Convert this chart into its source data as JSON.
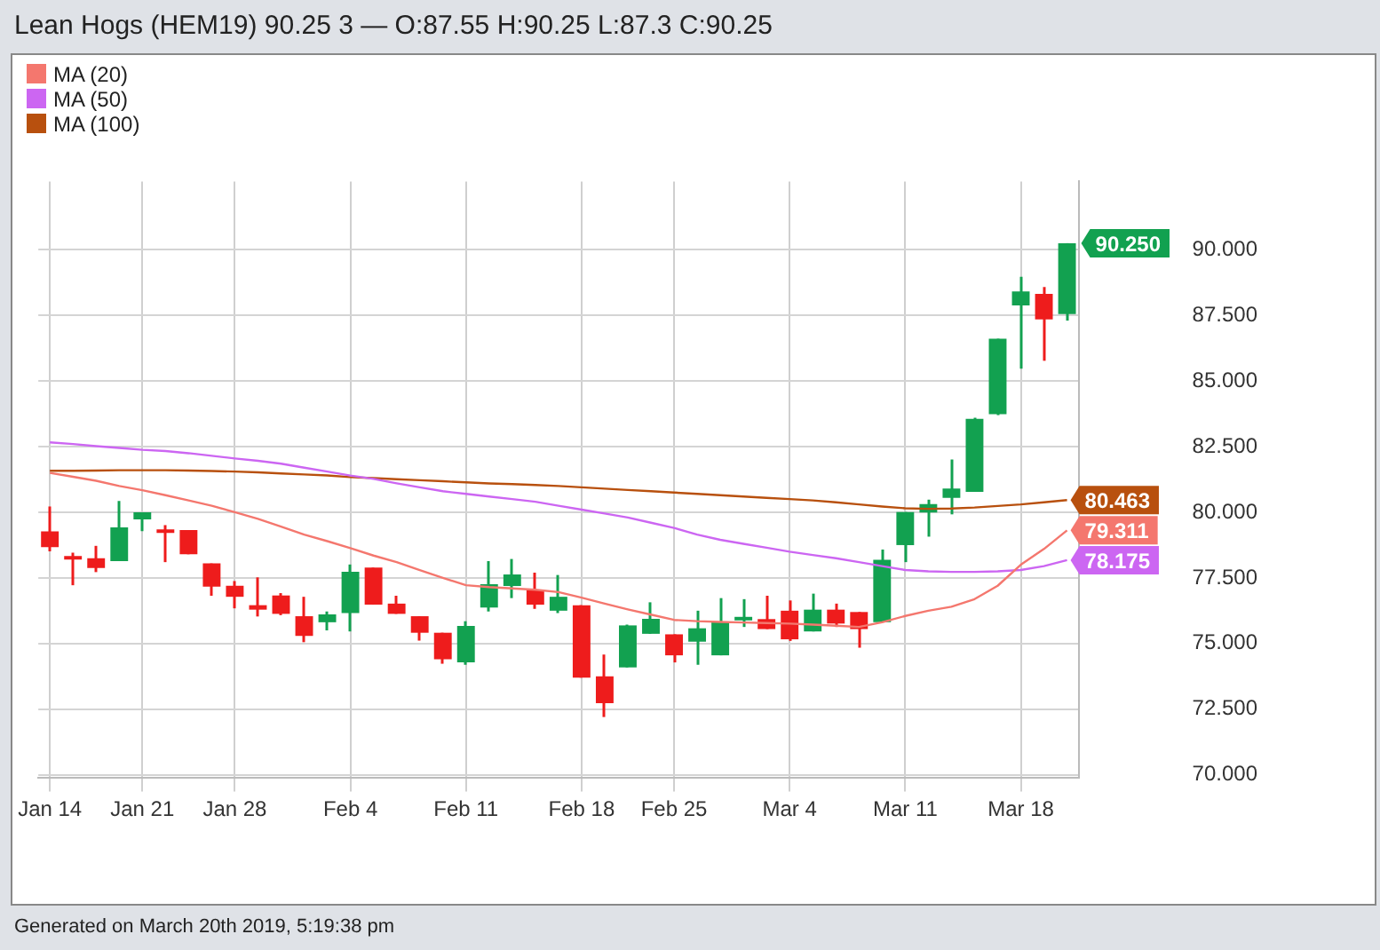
{
  "chart_data": {
    "type": "candlestick",
    "title": "Lean Hogs (HEM19) 90.25 3 — O:87.55 H:90.25 L:87.3 C:90.25",
    "categories": [
      "Jan 14",
      null,
      null,
      null,
      "Jan 21",
      null,
      null,
      null,
      "Jan 28",
      null,
      null,
      null,
      null,
      "Feb 4",
      null,
      null,
      null,
      null,
      "Feb 11",
      null,
      null,
      null,
      null,
      "Feb 18",
      null,
      null,
      null,
      "Feb 25",
      null,
      null,
      null,
      null,
      "Mar 4",
      null,
      null,
      null,
      null,
      "Mar 11",
      null,
      null,
      null,
      null,
      "Mar 18",
      null,
      null
    ],
    "ohlc": [
      [
        79.27,
        80.22,
        78.51,
        78.67
      ],
      [
        78.25,
        78.46,
        77.22,
        78.2
      ],
      [
        78.25,
        78.72,
        77.72,
        77.88
      ],
      [
        78.14,
        80.43,
        78.14,
        79.42
      ],
      [
        79.73,
        80.0,
        79.28,
        80.0
      ],
      [
        79.33,
        79.51,
        78.1,
        79.21
      ],
      [
        79.32,
        79.32,
        78.4,
        78.4
      ],
      [
        78.05,
        78.05,
        76.82,
        77.17
      ],
      [
        77.2,
        77.38,
        76.34,
        76.78
      ],
      [
        76.46,
        77.52,
        76.03,
        76.29
      ],
      [
        76.83,
        76.92,
        76.08,
        76.13
      ],
      [
        76.04,
        76.78,
        75.05,
        75.29
      ],
      [
        75.81,
        76.22,
        75.5,
        76.11
      ],
      [
        76.16,
        78.01,
        75.46,
        77.73
      ],
      [
        77.89,
        77.89,
        76.48,
        76.48
      ],
      [
        76.52,
        76.82,
        76.13,
        76.13
      ],
      [
        76.04,
        76.04,
        75.11,
        75.41
      ],
      [
        75.41,
        75.41,
        74.23,
        74.4
      ],
      [
        74.28,
        75.85,
        74.19,
        75.67
      ],
      [
        76.37,
        78.14,
        76.22,
        77.26
      ],
      [
        77.19,
        78.22,
        76.73,
        77.63
      ],
      [
        77.05,
        77.7,
        76.32,
        76.48
      ],
      [
        76.25,
        77.61,
        76.16,
        76.78
      ],
      [
        76.46,
        76.46,
        73.7,
        73.7
      ],
      [
        73.75,
        74.58,
        72.2,
        72.73
      ],
      [
        74.09,
        75.72,
        74.09,
        75.69
      ],
      [
        75.37,
        76.57,
        75.37,
        75.94
      ],
      [
        75.35,
        75.35,
        74.28,
        74.55
      ],
      [
        75.07,
        76.25,
        74.19,
        75.58
      ],
      [
        74.55,
        76.73,
        74.55,
        75.81
      ],
      [
        75.88,
        76.69,
        75.63,
        75.9
      ],
      [
        75.93,
        76.82,
        75.55,
        75.55
      ],
      [
        76.25,
        76.64,
        75.1,
        75.16
      ],
      [
        75.46,
        76.9,
        75.46,
        76.29
      ],
      [
        76.29,
        76.52,
        75.63,
        75.76
      ],
      [
        76.2,
        76.2,
        74.84,
        75.55
      ],
      [
        75.81,
        78.58,
        75.81,
        78.19
      ],
      [
        78.75,
        80.01,
        78.1,
        80.01
      ],
      [
        79.99,
        80.48,
        79.07,
        80.31
      ],
      [
        80.55,
        82.01,
        79.92,
        80.9
      ],
      [
        80.78,
        83.6,
        80.78,
        83.56
      ],
      [
        83.74,
        86.61,
        83.7,
        86.61
      ],
      [
        87.88,
        88.97,
        85.47,
        88.41
      ],
      [
        88.32,
        88.58,
        85.77,
        87.35
      ],
      [
        87.55,
        90.25,
        87.3,
        90.25
      ]
    ],
    "colors": [
      "#ee1c1c",
      "#ee1c1c",
      "#ee1c1c",
      "#12a150",
      "#12a150",
      "#ee1c1c",
      "#ee1c1c",
      "#ee1c1c",
      "#ee1c1c",
      "#ee1c1c",
      "#ee1c1c",
      "#ee1c1c",
      "#12a150",
      "#12a150",
      "#ee1c1c",
      "#ee1c1c",
      "#ee1c1c",
      "#ee1c1c",
      "#12a150",
      "#12a150",
      "#12a150",
      "#ee1c1c",
      "#12a150",
      "#ee1c1c",
      "#ee1c1c",
      "#12a150",
      "#12a150",
      "#ee1c1c",
      "#12a150",
      "#12a150",
      "#12a150",
      "#ee1c1c",
      "#ee1c1c",
      "#12a150",
      "#ee1c1c",
      "#ee1c1c",
      "#12a150",
      "#12a150",
      "#12a150",
      "#12a150",
      "#12a150",
      "#12a150",
      "#12a150",
      "#ee1c1c",
      "#12a150"
    ],
    "series": [
      {
        "name": "MA (20)",
        "type": "line",
        "color": "#f4776e",
        "values": [
          81.5,
          81.35,
          81.2,
          81.0,
          80.84,
          80.65,
          80.45,
          80.25,
          80.0,
          79.75,
          79.45,
          79.15,
          78.9,
          78.63,
          78.35,
          78.1,
          77.8,
          77.5,
          77.22,
          77.15,
          77.1,
          77.05,
          76.96,
          76.75,
          76.52,
          76.3,
          76.1,
          75.9,
          75.85,
          75.82,
          75.8,
          75.78,
          75.76,
          75.72,
          75.68,
          75.63,
          75.81,
          76.05,
          76.25,
          76.4,
          76.69,
          77.2,
          78.0,
          78.6,
          79.311
        ],
        "value_labels": [
          null,
          null,
          null,
          null,
          null,
          null,
          null,
          null,
          null,
          null,
          null,
          null,
          null,
          null,
          null,
          null,
          null,
          null,
          null,
          null,
          null,
          null,
          null,
          null,
          null,
          null,
          null,
          null,
          null,
          null,
          null,
          null,
          null,
          null,
          null,
          null,
          null,
          null,
          null,
          null,
          null,
          null,
          null,
          null,
          "79.311"
        ]
      },
      {
        "name": "MA (50)",
        "type": "line",
        "color": "#cc66f2",
        "values": [
          82.66,
          82.6,
          82.52,
          82.45,
          82.38,
          82.33,
          82.25,
          82.15,
          82.05,
          81.96,
          81.85,
          81.7,
          81.55,
          81.4,
          81.27,
          81.1,
          80.95,
          80.8,
          80.7,
          80.6,
          80.5,
          80.4,
          80.25,
          80.1,
          79.95,
          79.8,
          79.6,
          79.4,
          79.15,
          78.95,
          78.8,
          78.65,
          78.5,
          78.37,
          78.25,
          78.1,
          77.95,
          77.8,
          77.75,
          77.73,
          77.73,
          77.75,
          77.8,
          77.95,
          78.175
        ],
        "value_labels": [
          null,
          null,
          null,
          null,
          null,
          null,
          null,
          null,
          null,
          null,
          null,
          null,
          null,
          null,
          null,
          null,
          null,
          null,
          null,
          null,
          null,
          null,
          null,
          null,
          null,
          null,
          null,
          null,
          null,
          null,
          null,
          null,
          null,
          null,
          null,
          null,
          null,
          null,
          null,
          null,
          null,
          null,
          null,
          null,
          "78.175"
        ]
      },
      {
        "name": "MA (100)",
        "type": "line",
        "color": "#b8500e",
        "values": [
          81.58,
          81.58,
          81.59,
          81.6,
          81.6,
          81.6,
          81.59,
          81.57,
          81.55,
          81.52,
          81.48,
          81.44,
          81.4,
          81.34,
          81.3,
          81.26,
          81.22,
          81.18,
          81.14,
          81.1,
          81.07,
          81.04,
          81.0,
          80.95,
          80.9,
          80.85,
          80.8,
          80.75,
          80.7,
          80.65,
          80.6,
          80.55,
          80.5,
          80.45,
          80.38,
          80.3,
          80.22,
          80.15,
          80.13,
          80.14,
          80.18,
          80.24,
          80.3,
          80.38,
          80.463
        ],
        "value_labels": [
          null,
          null,
          null,
          null,
          null,
          null,
          null,
          null,
          null,
          null,
          null,
          null,
          null,
          null,
          null,
          null,
          null,
          null,
          null,
          null,
          null,
          null,
          null,
          null,
          null,
          null,
          null,
          null,
          null,
          null,
          null,
          null,
          null,
          null,
          null,
          null,
          null,
          null,
          null,
          null,
          null,
          null,
          null,
          null,
          "80.463"
        ]
      }
    ],
    "ylim": [
      69.9,
      92.6
    ],
    "yticks": [
      {
        "value": 70,
        "label": "70.000"
      },
      {
        "value": 72.5,
        "label": "72.500"
      },
      {
        "value": 75,
        "label": "75.000"
      },
      {
        "value": 77.5,
        "label": "77.500"
      },
      {
        "value": 80,
        "label": "80.000"
      },
      {
        "value": 82.5,
        "label": "82.500"
      },
      {
        "value": 85,
        "label": "85.000"
      },
      {
        "value": 87.5,
        "label": "87.500"
      },
      {
        "value": 90,
        "label": "90.000"
      }
    ],
    "grid": true,
    "legend": "top left",
    "marker": "none",
    "line_style": "solid",
    "annotations": [
      "90.250",
      "Generated on March 20th 2019, 5:19:38 pm"
    ]
  }
}
